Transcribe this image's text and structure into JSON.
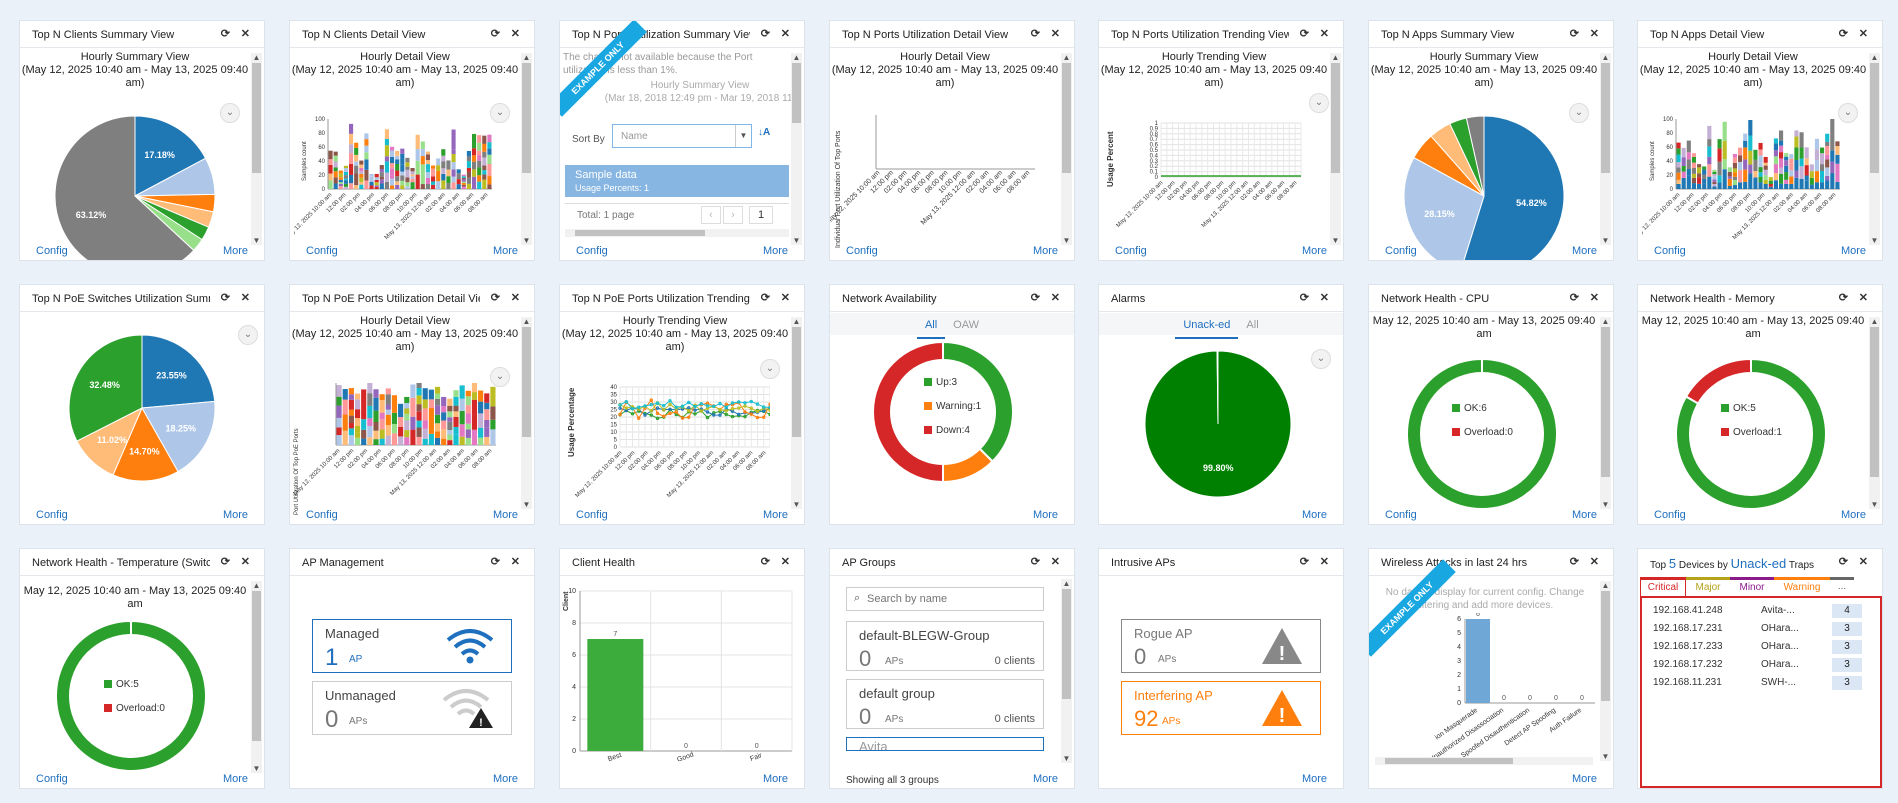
{
  "common": {
    "config": "Config",
    "more": "More",
    "refresh_icon": "refresh-icon",
    "close_icon": "close-icon"
  },
  "widgets": {
    "w1": {
      "title": "Top N Clients Summary View",
      "sub": "Hourly Summary View",
      "range": "(May 12, 2025 10:40 am - May 13, 2025 09:40 am)",
      "chart_data": {
        "type": "pie",
        "slices": [
          {
            "label": "17.18%",
            "value": 17.18,
            "color": "#1f77b4"
          },
          {
            "label": "",
            "value": 7.5,
            "color": "#aec7e8"
          },
          {
            "label": "",
            "value": 3.5,
            "color": "#ff7f0e"
          },
          {
            "label": "",
            "value": 3.2,
            "color": "#ffbb78"
          },
          {
            "label": "",
            "value": 2.8,
            "color": "#2ca02c"
          },
          {
            "label": "",
            "value": 2.7,
            "color": "#98df8a"
          },
          {
            "label": "63.12%",
            "value": 63.12,
            "color": "#7f7f7f"
          }
        ]
      }
    },
    "w2": {
      "title": "Top N Clients Detail View",
      "sub": "Hourly Detail View",
      "range": "(May 12, 2025 10:40 am - May 13, 2025 09:40 am)",
      "ylabel": "Samples count",
      "yticks": [
        "100",
        "80",
        "60",
        "40",
        "20",
        "0"
      ]
    },
    "w3": {
      "title": "Top N Ports Utilization Summary View",
      "ribbon": "EXAMPLE ONLY",
      "note": "The chart is not available because the Port utilization is less than 1%.",
      "sub": "Hourly Summary View",
      "range": "(Mar 18, 2018 12:49 pm - Mar 19, 2018 11:",
      "sortby": "Sort By",
      "sort_value": "Name",
      "row_title": "Sample data",
      "row_sub": "Usage Percents: 1",
      "total": "Total: 1 page",
      "page": "1"
    },
    "w4": {
      "title": "Top N Ports Utilization Detail View",
      "sub": "Hourly Detail View",
      "range": "(May 12, 2025 10:40 am - May 13, 2025 09:40 am)",
      "ylabel": "Individual Port Utilization Of Top Ports"
    },
    "w5": {
      "title": "Top N Ports Utilization Trending View",
      "sub": "Hourly Trending View",
      "range": "(May 12, 2025 10:40 am - May 13, 2025 09:40 am)",
      "ylabel": "Usage Percent",
      "yticks": [
        "1",
        "0.9",
        "0.8",
        "0.7",
        "0.6",
        "0.5",
        "0.4",
        "0.3",
        "0.2",
        "0.1",
        "0"
      ]
    },
    "w6": {
      "title": "Top N Apps Summary View",
      "sub": "Hourly Summary View",
      "range": "(May 12, 2025 10:40 am - May 13, 2025 09:40 am)",
      "chart_data": {
        "type": "pie",
        "slices": [
          {
            "label": "54.82%",
            "value": 54.82,
            "color": "#1f77b4"
          },
          {
            "label": "28.15%",
            "value": 28.15,
            "color": "#aec7e8"
          },
          {
            "label": "",
            "value": 5.5,
            "color": "#ff7f0e"
          },
          {
            "label": "",
            "value": 4.5,
            "color": "#ffbb78"
          },
          {
            "label": "",
            "value": 3.5,
            "color": "#2ca02c"
          },
          {
            "label": "",
            "value": 3.53,
            "color": "#7f7f7f"
          }
        ]
      }
    },
    "w7": {
      "title": "Top N Apps Detail View",
      "sub": "Hourly Detail View",
      "range": "(May 12, 2025 10:40 am - May 13, 2025 09:40 am)",
      "ylabel": "Samples count",
      "yticks": [
        "100",
        "80",
        "60",
        "40",
        "20",
        "0"
      ]
    },
    "w8": {
      "title": "Top N PoE Switches Utilization Summ",
      "chart_data": {
        "type": "pie",
        "slices": [
          {
            "label": "23.55%",
            "value": 23.55,
            "color": "#1f77b4"
          },
          {
            "label": "18.25%",
            "value": 18.25,
            "color": "#aec7e8"
          },
          {
            "label": "14.70%",
            "value": 14.7,
            "color": "#ff7f0e"
          },
          {
            "label": "11.02%",
            "value": 11.02,
            "color": "#ffbb78"
          },
          {
            "label": "32.48%",
            "value": 32.48,
            "color": "#2ca02c"
          }
        ]
      }
    },
    "w9": {
      "title": "Top N PoE Ports Utilization Detail Vie",
      "sub": "Hourly Detail View",
      "range": "(May 12, 2025 10:40 am - May 13, 2025 09:40 am)",
      "ylabel": "Port Utilization Of Top PoE Ports"
    },
    "w10": {
      "title": "Top N PoE Ports Utilization Trending '",
      "sub": "Hourly Trending View",
      "range": "(May 12, 2025 10:40 am - May 13, 2025 09:40 am)",
      "ylabel": "Usage Percentage",
      "yticks": [
        "40",
        "35",
        "30",
        "25",
        "20",
        "15",
        "10",
        "5",
        "0"
      ]
    },
    "w11": {
      "title": "Network Availability",
      "tab1": "All",
      "tab2": "OAW",
      "legend": [
        {
          "label": "Up:3",
          "color": "#2ca02c"
        },
        {
          "label": "Warning:1",
          "color": "#ff7f0e"
        },
        {
          "label": "Down:4",
          "color": "#d62728"
        }
      ],
      "chart_data": {
        "type": "pie",
        "slices": [
          {
            "label": "Up",
            "value": 3,
            "color": "#2ca02c"
          },
          {
            "label": "Warning",
            "value": 1,
            "color": "#ff7f0e"
          },
          {
            "label": "Down",
            "value": 4,
            "color": "#d62728"
          }
        ]
      }
    },
    "w12": {
      "title": "Alarms",
      "tab1": "Unack-ed",
      "tab2": "All",
      "chart_data": {
        "type": "pie",
        "slices": [
          {
            "label": "99.80%",
            "value": 99.8,
            "color": "#008000"
          },
          {
            "label": "",
            "value": 0.2,
            "color": "#cccccc"
          }
        ]
      }
    },
    "w13": {
      "title": "Network Health - CPU",
      "range": "May 12, 2025 10:40 am - May 13, 2025 09:40 am",
      "legend": [
        {
          "label": "OK:6",
          "color": "#2ca02c"
        },
        {
          "label": "Overload:0",
          "color": "#d62728"
        }
      ],
      "chart_data": {
        "type": "pie",
        "slices": [
          {
            "label": "OK",
            "value": 6,
            "color": "#2ca02c"
          },
          {
            "label": "Overload",
            "value": 0,
            "color": "#d62728"
          }
        ]
      }
    },
    "w14": {
      "title": "Network Health - Memory",
      "range": "May 12, 2025 10:40 am - May 13, 2025 09:40 am",
      "legend": [
        {
          "label": "OK:5",
          "color": "#2ca02c"
        },
        {
          "label": "Overload:1",
          "color": "#d62728"
        }
      ],
      "chart_data": {
        "type": "pie",
        "slices": [
          {
            "label": "OK",
            "value": 5,
            "color": "#2ca02c"
          },
          {
            "label": "Overload",
            "value": 1,
            "color": "#d62728"
          }
        ]
      }
    },
    "w15": {
      "title": "Network Health - Temperature (Switc",
      "range": "May 12, 2025 10:40 am - May 13, 2025 09:40 am",
      "legend": [
        {
          "label": "OK:5",
          "color": "#2ca02c"
        },
        {
          "label": "Overload:0",
          "color": "#d62728"
        }
      ],
      "chart_data": {
        "type": "pie",
        "slices": [
          {
            "label": "OK",
            "value": 5,
            "color": "#2ca02c"
          },
          {
            "label": "Overload",
            "value": 0,
            "color": "#d62728"
          }
        ]
      }
    },
    "w16": {
      "title": "AP Management",
      "managed_label": "Managed",
      "managed_value": "1",
      "managed_unit": "AP",
      "unmanaged_label": "Unmanaged",
      "unmanaged_value": "0",
      "unmanaged_unit": "APs"
    },
    "w17": {
      "title": "Client Health",
      "ylabel": "Client",
      "chart_data": {
        "type": "bar",
        "categories": [
          "Best",
          "Good",
          "Fair"
        ],
        "values": [
          7,
          0,
          0
        ],
        "ylim": [
          0,
          10
        ],
        "yticks": [
          "10",
          "8",
          "6",
          "4",
          "2",
          "0"
        ],
        "color": "#3cad3c"
      }
    },
    "w18": {
      "title": "AP Groups",
      "search_placeholder": "Search by name",
      "groups": [
        {
          "name": "default-BLEGW-Group",
          "aps": "0",
          "aps_unit": "APs",
          "clients": "0 clients"
        },
        {
          "name": "default group",
          "aps": "0",
          "aps_unit": "APs",
          "clients": "0 clients"
        },
        {
          "name": "Avita"
        }
      ],
      "showing": "Showing all 3 groups"
    },
    "w19": {
      "title": "Intrusive APs",
      "rogue_label": "Rogue AP",
      "rogue_value": "0",
      "rogue_unit": "APs",
      "interfering_label": "Interfering AP",
      "interfering_value": "92",
      "interfering_unit": "APs"
    },
    "w20": {
      "title": "Wireless Attacks in last 24 hrs",
      "ribbon": "EXAMPLE ONLY",
      "note": "No data to display for current config. Change filtering and add more devices.",
      "chart_data": {
        "type": "bar",
        "categories": [
          "ion Masquerade",
          "Unauthorized Disassociation",
          "Spoofed Disauthentication",
          "Detect AP Spoofing",
          "Auth Failure"
        ],
        "values": [
          6,
          0,
          0,
          0,
          0
        ],
        "ylim": [
          0,
          6
        ],
        "yticks": [
          "6",
          "5",
          "4",
          "3",
          "2",
          "1",
          "0"
        ],
        "color": "#6fa8d6"
      }
    },
    "w21": {
      "title_pre": "Top",
      "title_num": "5",
      "title_mid": "Devices by",
      "title_link": "Unack-ed",
      "title_post": "Traps",
      "tabs": [
        "Critical",
        "Major",
        "Minor",
        "Warning",
        "..."
      ],
      "tab_colors": [
        "#d62728",
        "#b5a31a",
        "#8b1a8b",
        "#ff7f0e",
        "#666666"
      ],
      "rows": [
        {
          "ip": "192.168.41.248",
          "name": "Avita-...",
          "count": "4"
        },
        {
          "ip": "192.168.17.231",
          "name": "OHara...",
          "count": "3"
        },
        {
          "ip": "192.168.17.233",
          "name": "OHara...",
          "count": "3"
        },
        {
          "ip": "192.168.17.232",
          "name": "OHara...",
          "count": "3"
        },
        {
          "ip": "192.168.11.231",
          "name": "SWH-...",
          "count": "3"
        }
      ]
    }
  }
}
